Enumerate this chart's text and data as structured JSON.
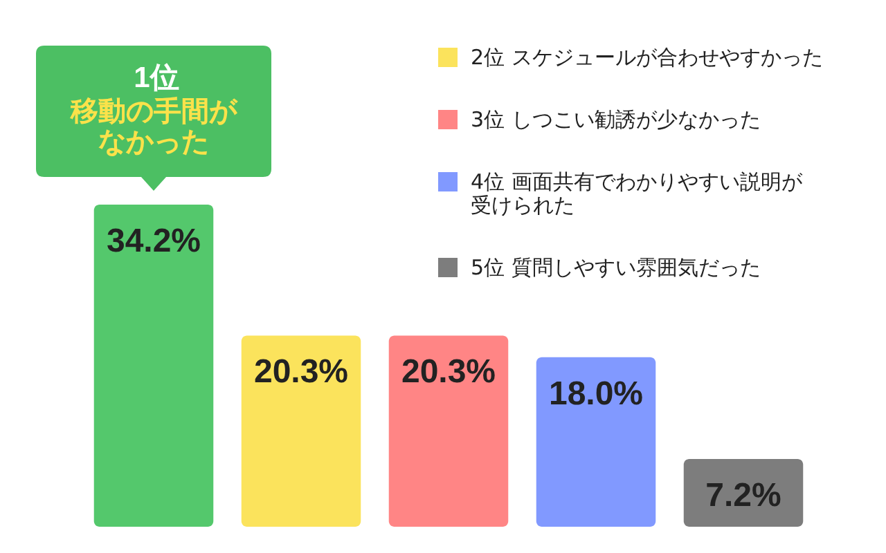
{
  "chart_data": {
    "type": "bar",
    "stacked": true,
    "categories": [
      null,
      null,
      null,
      null,
      null
    ],
    "series": [
      {
        "color": "#54c86c",
        "values": [
          34.2,
          null,
          null,
          null,
          null
        ],
        "value_labels": [
          "34.2%",
          null,
          null,
          null,
          null
        ]
      },
      {
        "name": "2位 スケジュールが合わせやすかった",
        "color": "#fbe35c",
        "values": [
          null,
          20.3,
          null,
          null,
          null
        ],
        "value_labels": [
          null,
          "20.3%",
          null,
          null,
          null
        ]
      },
      {
        "name": "3位 しつこい勧誘が少なかった",
        "color": "#ff8585",
        "values": [
          null,
          null,
          20.3,
          null,
          null
        ],
        "value_labels": [
          null,
          null,
          "20.3%",
          null,
          null
        ]
      },
      {
        "name": "4位 画面共有でわかりやすい説明が受けられた",
        "color": "#8199ff",
        "values": [
          null,
          null,
          null,
          18.0,
          null
        ],
        "value_labels": [
          null,
          null,
          null,
          "18.0%",
          null
        ]
      },
      {
        "name": "5位 質問しやすい雰囲気だった",
        "color": "#7d7d7d",
        "values": [
          null,
          null,
          null,
          null,
          7.2
        ],
        "value_labels": [
          null,
          null,
          null,
          null,
          "7.2%"
        ]
      }
    ],
    "annotations": [
      "1位",
      "移動の手間がなかった"
    ],
    "legend": "top right",
    "tick_labels": false
  }
}
